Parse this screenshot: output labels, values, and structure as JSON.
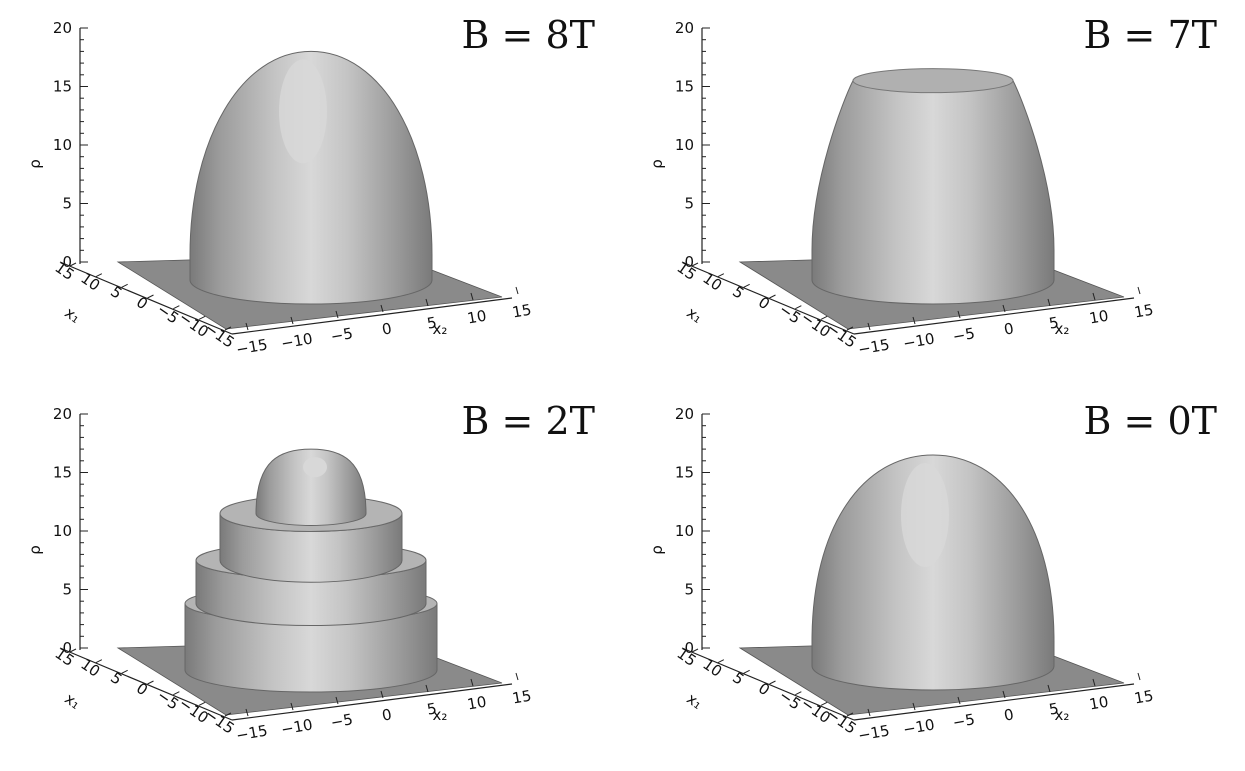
{
  "panels": [
    {
      "title": "B  =  8T",
      "shape": "dome",
      "peak": 18,
      "flat_top": false
    },
    {
      "title": "B  =  7T",
      "shape": "flat",
      "peak": 15.5,
      "flat_top": true
    },
    {
      "title": "B  =  2T",
      "shape": "steps",
      "peak": 17,
      "flat_top": false
    },
    {
      "title": "B  =  0T",
      "shape": "dome",
      "peak": 16.5,
      "flat_top": false
    }
  ],
  "axes": {
    "z_label": "ρ",
    "z_ticks": [
      "0",
      "5",
      "10",
      "15",
      "20"
    ],
    "x_label": "x₂",
    "x_ticks": [
      "−15",
      "−10",
      "−5",
      "0",
      "5",
      "10",
      "15"
    ],
    "y_label": "x₁",
    "y_ticks": [
      "15",
      "10",
      "5",
      "0",
      "−5",
      "−10",
      "−15"
    ]
  },
  "colors": {
    "floor": "#8a8a8a",
    "surface_dark": "#7a7a7a",
    "surface_mid": "#9b9b9b",
    "surface_light": "#c4c4c4",
    "surface_highlight": "#d8d8d8"
  }
}
